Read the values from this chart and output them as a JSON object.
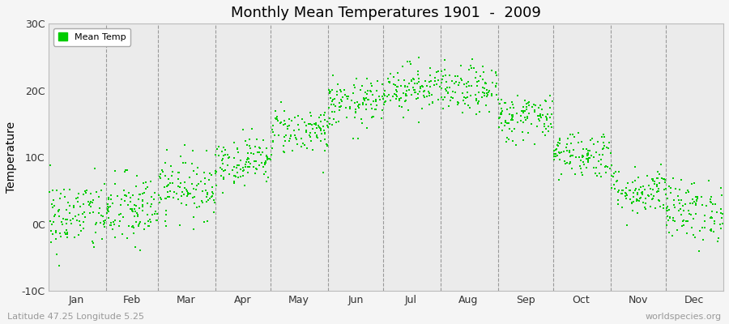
{
  "title": "Monthly Mean Temperatures 1901  -  2009",
  "ylabel": "Temperature",
  "xlabel_labels": [
    "Jan",
    "Feb",
    "Mar",
    "Apr",
    "May",
    "Jun",
    "Jul",
    "Aug",
    "Sep",
    "Oct",
    "Nov",
    "Dec"
  ],
  "subtitle": "Latitude 47.25 Longitude 5.25",
  "watermark": "worldspecies.org",
  "yticks": [
    -10,
    0,
    10,
    20,
    30
  ],
  "ytick_labels": [
    "-10C",
    "0C",
    "10C",
    "20C",
    "30C"
  ],
  "ylim": [
    -10,
    30
  ],
  "legend_label": "Mean Temp",
  "dot_color": "#00cc00",
  "background_color": "#f5f5f5",
  "plot_bg_color": "#ebebeb",
  "n_years": 109,
  "monthly_means": [
    1.2,
    2.0,
    5.5,
    9.5,
    14.0,
    18.0,
    20.5,
    20.0,
    16.0,
    10.5,
    5.0,
    2.0
  ],
  "monthly_stds": [
    2.8,
    2.8,
    2.3,
    1.8,
    1.8,
    1.8,
    1.8,
    1.8,
    1.8,
    1.8,
    1.8,
    2.3
  ],
  "month_days": [
    31,
    28,
    31,
    30,
    31,
    30,
    31,
    31,
    30,
    31,
    30,
    31
  ],
  "month_starts": [
    0,
    31,
    59,
    90,
    120,
    151,
    181,
    212,
    243,
    273,
    304,
    334
  ],
  "month_midpoints": [
    15,
    45,
    74,
    105,
    135,
    166,
    196,
    227,
    258,
    288,
    319,
    349
  ]
}
